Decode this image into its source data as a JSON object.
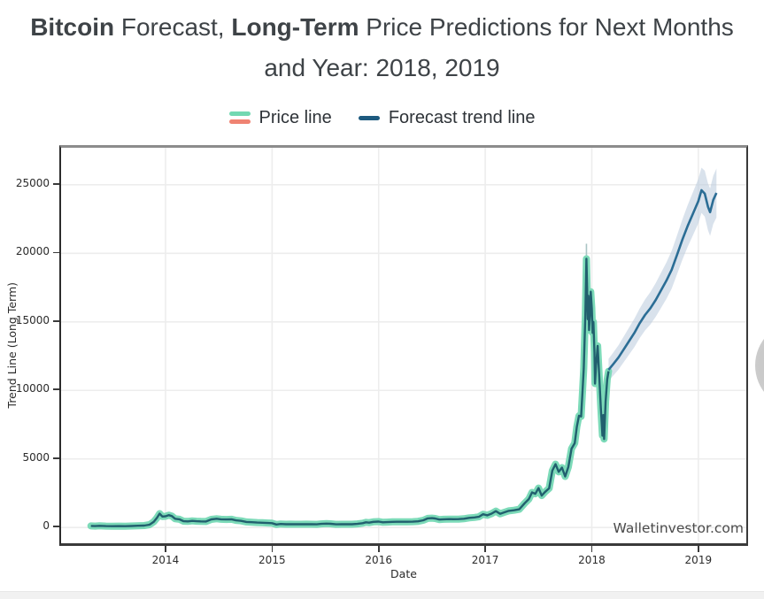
{
  "title": {
    "parts": [
      {
        "text": "Bitcoin",
        "bold": true
      },
      {
        "text": " Forecast, ",
        "bold": false
      },
      {
        "text": "Long-Term",
        "bold": true
      },
      {
        "text": " Price Predictions for Next Months",
        "bold": false
      }
    ],
    "line2": "and Year: 2018, 2019",
    "color": "#3e4347"
  },
  "legend": {
    "items": [
      {
        "label": "Price line",
        "swatch_colors": [
          "#72d8b2",
          "#ef8372"
        ]
      },
      {
        "label": "Forecast trend line",
        "swatch_colors": [
          "#1d5a7f"
        ]
      }
    ]
  },
  "side_button": {
    "color": "#c9c9c9"
  },
  "chart_data": {
    "type": "line",
    "xlabel": "Date",
    "ylabel": "Trend Line (Long Term)",
    "xlim": [
      2013.02,
      2019.45
    ],
    "ylim": [
      -1150,
      27700
    ],
    "grid": true,
    "grid_color": "#ededed",
    "legend_position": "top-center",
    "x_ticks": [
      {
        "value": 2014,
        "label": "2014"
      },
      {
        "value": 2015,
        "label": "2015"
      },
      {
        "value": 2016,
        "label": "2016"
      },
      {
        "value": 2017,
        "label": "2017"
      },
      {
        "value": 2018,
        "label": "2018"
      },
      {
        "value": 2019,
        "label": "2019"
      }
    ],
    "y_ticks": [
      {
        "value": 0,
        "label": "0"
      },
      {
        "value": 5000,
        "label": "5000"
      },
      {
        "value": 10000,
        "label": "10000"
      },
      {
        "value": 15000,
        "label": "15000"
      },
      {
        "value": 20000,
        "label": "20000"
      },
      {
        "value": 25000,
        "label": "25000"
      }
    ],
    "series": [
      {
        "name": "Price line",
        "line_color": "#215f6e",
        "halo_color": "#7cdab8",
        "points": [
          [
            2013.3,
            115
          ],
          [
            2013.34,
            100
          ],
          [
            2013.38,
            120
          ],
          [
            2013.44,
            105
          ],
          [
            2013.5,
            98
          ],
          [
            2013.56,
            100
          ],
          [
            2013.62,
            95
          ],
          [
            2013.68,
            110
          ],
          [
            2013.74,
            125
          ],
          [
            2013.8,
            140
          ],
          [
            2013.85,
            205
          ],
          [
            2013.89,
            420
          ],
          [
            2013.92,
            700
          ],
          [
            2013.945,
            1010
          ],
          [
            2013.97,
            800
          ],
          [
            2014.0,
            820
          ],
          [
            2014.03,
            905
          ],
          [
            2014.06,
            830
          ],
          [
            2014.09,
            640
          ],
          [
            2014.13,
            600
          ],
          [
            2014.17,
            460
          ],
          [
            2014.21,
            445
          ],
          [
            2014.25,
            480
          ],
          [
            2014.29,
            455
          ],
          [
            2014.33,
            445
          ],
          [
            2014.38,
            440
          ],
          [
            2014.43,
            590
          ],
          [
            2014.48,
            640
          ],
          [
            2014.52,
            600
          ],
          [
            2014.57,
            585
          ],
          [
            2014.62,
            600
          ],
          [
            2014.66,
            520
          ],
          [
            2014.71,
            485
          ],
          [
            2014.76,
            405
          ],
          [
            2014.81,
            385
          ],
          [
            2014.86,
            360
          ],
          [
            2014.91,
            345
          ],
          [
            2014.96,
            330
          ],
          [
            2015.0,
            315
          ],
          [
            2015.04,
            218
          ],
          [
            2015.08,
            255
          ],
          [
            2015.13,
            240
          ],
          [
            2015.17,
            245
          ],
          [
            2015.22,
            235
          ],
          [
            2015.27,
            240
          ],
          [
            2015.32,
            245
          ],
          [
            2015.37,
            237
          ],
          [
            2015.42,
            230
          ],
          [
            2015.46,
            263
          ],
          [
            2015.51,
            284
          ],
          [
            2015.55,
            270
          ],
          [
            2015.6,
            230
          ],
          [
            2015.65,
            237
          ],
          [
            2015.7,
            240
          ],
          [
            2015.75,
            237
          ],
          [
            2015.8,
            265
          ],
          [
            2015.85,
            318
          ],
          [
            2015.88,
            378
          ],
          [
            2015.91,
            355
          ],
          [
            2015.95,
            415
          ],
          [
            2016.0,
            433
          ],
          [
            2016.04,
            378
          ],
          [
            2016.08,
            395
          ],
          [
            2016.13,
            415
          ],
          [
            2016.17,
            418
          ],
          [
            2016.22,
            420
          ],
          [
            2016.27,
            417
          ],
          [
            2016.32,
            422
          ],
          [
            2016.37,
            453
          ],
          [
            2016.42,
            530
          ],
          [
            2016.46,
            665
          ],
          [
            2016.5,
            680
          ],
          [
            2016.53,
            655
          ],
          [
            2016.57,
            580
          ],
          [
            2016.61,
            600
          ],
          [
            2016.66,
            610
          ],
          [
            2016.7,
            607
          ],
          [
            2016.75,
            615
          ],
          [
            2016.8,
            635
          ],
          [
            2016.85,
            700
          ],
          [
            2016.9,
            735
          ],
          [
            2016.94,
            780
          ],
          [
            2016.98,
            965
          ],
          [
            2017.02,
            890
          ],
          [
            2017.06,
            1010
          ],
          [
            2017.1,
            1190
          ],
          [
            2017.14,
            1000
          ],
          [
            2017.18,
            1110
          ],
          [
            2017.22,
            1210
          ],
          [
            2017.27,
            1255
          ],
          [
            2017.32,
            1330
          ],
          [
            2017.37,
            1770
          ],
          [
            2017.41,
            2080
          ],
          [
            2017.44,
            2560
          ],
          [
            2017.47,
            2460
          ],
          [
            2017.5,
            2880
          ],
          [
            2017.53,
            2330
          ],
          [
            2017.56,
            2580
          ],
          [
            2017.6,
            2860
          ],
          [
            2017.63,
            4150
          ],
          [
            2017.66,
            4620
          ],
          [
            2017.69,
            4060
          ],
          [
            2017.72,
            4370
          ],
          [
            2017.75,
            3720
          ],
          [
            2017.78,
            4420
          ],
          [
            2017.81,
            5750
          ],
          [
            2017.84,
            6150
          ],
          [
            2017.86,
            7350
          ],
          [
            2017.88,
            8150
          ],
          [
            2017.9,
            8100
          ],
          [
            2017.912,
            9800
          ],
          [
            2017.925,
            11600
          ],
          [
            2017.94,
            15500
          ],
          [
            2017.95,
            19600
          ],
          [
            2017.957,
            17200
          ],
          [
            2017.962,
            15200
          ],
          [
            2017.968,
            16900
          ],
          [
            2017.975,
            14400
          ],
          [
            2017.983,
            15500
          ],
          [
            2017.99,
            17200
          ],
          [
            2018.0,
            16000
          ],
          [
            2018.008,
            14200
          ],
          [
            2018.015,
            15000
          ],
          [
            2018.025,
            12800
          ],
          [
            2018.03,
            10500
          ],
          [
            2018.04,
            11800
          ],
          [
            2018.055,
            13250
          ],
          [
            2018.07,
            11000
          ],
          [
            2018.085,
            8700
          ],
          [
            2018.1,
            6700
          ],
          [
            2018.108,
            8200
          ],
          [
            2018.116,
            6450
          ],
          [
            2018.13,
            9200
          ],
          [
            2018.145,
            10800
          ],
          [
            2018.157,
            11400
          ]
        ]
      },
      {
        "name": "Forecast trend line",
        "line_color": "#2b6d95",
        "band_fill": "#b9cbdd",
        "band_opacity": 0.55,
        "points_format": "[year, value, band_halfwidth]",
        "points": [
          [
            2018.157,
            11500,
            800
          ],
          [
            2018.2,
            11900,
            840
          ],
          [
            2018.25,
            12400,
            890
          ],
          [
            2018.3,
            13000,
            940
          ],
          [
            2018.35,
            13600,
            990
          ],
          [
            2018.4,
            14200,
            1040
          ],
          [
            2018.45,
            14900,
            1080
          ],
          [
            2018.5,
            15500,
            1130
          ],
          [
            2018.55,
            16000,
            1180
          ],
          [
            2018.6,
            16600,
            1230
          ],
          [
            2018.65,
            17300,
            1280
          ],
          [
            2018.7,
            18000,
            1330
          ],
          [
            2018.75,
            18800,
            1380
          ],
          [
            2018.8,
            19900,
            1420
          ],
          [
            2018.85,
            21000,
            1470
          ],
          [
            2018.9,
            22000,
            1520
          ],
          [
            2018.95,
            22900,
            1570
          ],
          [
            2019.0,
            23800,
            1620
          ],
          [
            2019.03,
            24600,
            1650
          ],
          [
            2019.06,
            24350,
            1680
          ],
          [
            2019.09,
            23400,
            1710
          ],
          [
            2019.11,
            23000,
            1730
          ],
          [
            2019.14,
            23900,
            1760
          ],
          [
            2019.17,
            24400,
            1790
          ]
        ]
      }
    ],
    "annotations": {
      "watermark": "Walletinvestor.com",
      "peak_whisker": {
        "x": 2017.95,
        "y_from": 19700,
        "y_to": 20700,
        "color": "#aac4c4"
      }
    }
  }
}
